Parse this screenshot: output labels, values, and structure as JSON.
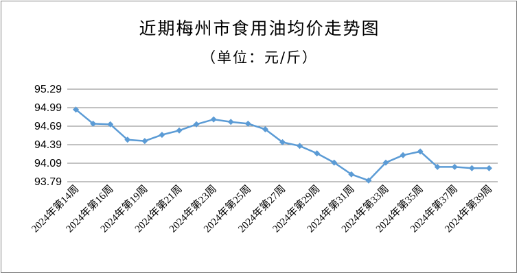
{
  "chart_data": {
    "type": "line",
    "title": "近期梅州市食用油均价走势图",
    "subtitle": "（单位：元/斤）",
    "yticks": [
      "93.79",
      "94.09",
      "94.39",
      "94.69",
      "94.99",
      "95.29"
    ],
    "ylim": [
      93.79,
      95.29
    ],
    "x_tick_labels": [
      "2024年第14周",
      "2024年第16周",
      "2024年第19周",
      "2024年第21周",
      "2024年第23周",
      "2024年第25周",
      "2024年第27周",
      "2024年第29周",
      "2024年第31周",
      "2024年第33周",
      "2024年第35周",
      "2024年第37周",
      "2024年第39周"
    ],
    "values": [
      94.96,
      94.73,
      94.72,
      94.47,
      94.45,
      94.55,
      94.62,
      94.72,
      94.8,
      94.76,
      94.73,
      94.64,
      94.43,
      94.37,
      94.25,
      94.1,
      93.91,
      93.81,
      94.1,
      94.22,
      94.28,
      94.03,
      94.03,
      94.01,
      94.01
    ],
    "grid": true,
    "legend": "none",
    "line_color": "#5b9bd5"
  }
}
